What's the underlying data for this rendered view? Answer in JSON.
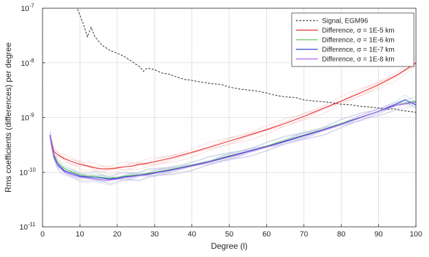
{
  "chart_data": {
    "type": "line",
    "title": "",
    "xlabel": "Degree (l)",
    "ylabel": "Rms coefficients (differences) per degree",
    "xlim": [
      0,
      100
    ],
    "ylim": [
      1e-11,
      1e-07
    ],
    "yscale": "log",
    "grid": true,
    "legend_position": "top-right",
    "x_ticks": [
      "0",
      "10",
      "20",
      "30",
      "40",
      "50",
      "60",
      "70",
      "80",
      "90",
      "100"
    ],
    "y_ticks": [
      {
        "value": 1e-11,
        "mantissa": "10",
        "exponent": "-11"
      },
      {
        "value": 1e-10,
        "mantissa": "10",
        "exponent": "-10"
      },
      {
        "value": 1e-09,
        "mantissa": "10",
        "exponent": "-9"
      },
      {
        "value": 1e-08,
        "mantissa": "10",
        "exponent": "-8"
      },
      {
        "value": 1e-07,
        "mantissa": "10",
        "exponent": "-7"
      }
    ],
    "series": [
      {
        "name": "Signal, EGM96",
        "color": "#404040",
        "dash": "3 2",
        "x": [
          9,
          10,
          11,
          12,
          13,
          14,
          15,
          16,
          18,
          20,
          22,
          24,
          26,
          27,
          28,
          30,
          32,
          34,
          36,
          38,
          40,
          42,
          45,
          48,
          50,
          53,
          55,
          58,
          60,
          63,
          65,
          68,
          70,
          73,
          75,
          78,
          80,
          83,
          85,
          88,
          90,
          92,
          94,
          96,
          98,
          100
        ],
        "y": [
          1.1e-07,
          7.5e-08,
          5e-08,
          3e-08,
          4.5e-08,
          3e-08,
          2.5e-08,
          2.1e-08,
          1.7e-08,
          1.5e-08,
          1.3e-08,
          1.05e-08,
          8.5e-09,
          7e-09,
          8e-09,
          7.5e-09,
          6.5e-09,
          6.2e-09,
          5.5e-09,
          5e-09,
          4.8e-09,
          4.5e-09,
          4.2e-09,
          4e-09,
          3.6e-09,
          3.3e-09,
          3.2e-09,
          3e-09,
          2.8e-09,
          2.5e-09,
          2.4e-09,
          2.3e-09,
          2.1e-09,
          2e-09,
          1.95e-09,
          1.85e-09,
          1.75e-09,
          1.7e-09,
          1.6e-09,
          1.55e-09,
          1.5e-09,
          1.4e-09,
          1.45e-09,
          1.35e-09,
          1.3e-09,
          1.25e-09
        ]
      },
      {
        "name": "Difference, σ = 1E-5 km",
        "color": "#e8272b",
        "band": "#f7b3b3",
        "x": [
          2,
          3,
          4,
          5,
          6,
          8,
          10,
          12,
          14,
          16,
          18,
          20,
          22,
          24,
          26,
          28,
          30,
          35,
          40,
          45,
          50,
          55,
          60,
          65,
          70,
          75,
          80,
          85,
          90,
          95,
          100
        ],
        "y": [
          4.5e-10,
          2.4e-10,
          2.1e-10,
          1.9e-10,
          1.75e-10,
          1.55e-10,
          1.4e-10,
          1.3e-10,
          1.2e-10,
          1.15e-10,
          1.15e-10,
          1.2e-10,
          1.25e-10,
          1.3e-10,
          1.4e-10,
          1.45e-10,
          1.55e-10,
          1.85e-10,
          2.3e-10,
          2.9e-10,
          3.7e-10,
          4.7e-10,
          6e-10,
          7.8e-10,
          1.05e-09,
          1.45e-09,
          2e-09,
          2.8e-09,
          4e-09,
          6e-09,
          1e-08
        ]
      },
      {
        "name": "Difference, σ = 1E-6 km",
        "color": "#59c85a",
        "band": "#b9e6b9",
        "x": [
          2,
          3,
          4,
          5,
          6,
          8,
          10,
          12,
          14,
          16,
          18,
          20,
          22,
          24,
          26,
          28,
          30,
          35,
          40,
          45,
          50,
          55,
          60,
          65,
          70,
          75,
          80,
          85,
          90,
          95,
          100
        ],
        "y": [
          4.3e-10,
          2.1e-10,
          1.5e-10,
          1.3e-10,
          1.15e-10,
          1e-10,
          9e-11,
          8.5e-11,
          8.5e-11,
          8e-11,
          7.8e-11,
          8e-11,
          8.5e-11,
          8.8e-11,
          9e-11,
          9.5e-11,
          1e-10,
          1.15e-10,
          1.35e-10,
          1.6e-10,
          2e-10,
          2.4e-10,
          3e-10,
          3.8e-10,
          4.8e-10,
          6e-10,
          7.8e-10,
          1e-09,
          1.3e-09,
          1.7e-09,
          2e-09
        ]
      },
      {
        "name": "Difference, σ = 1E-7 km",
        "color": "#2f3fd6",
        "band": "#aab2ef",
        "x": [
          2,
          3,
          4,
          5,
          6,
          8,
          10,
          12,
          14,
          16,
          18,
          20,
          22,
          24,
          26,
          28,
          30,
          35,
          40,
          45,
          50,
          55,
          60,
          65,
          70,
          75,
          80,
          85,
          90,
          95,
          97,
          100
        ],
        "y": [
          4.8e-10,
          2e-10,
          1.4e-10,
          1.2e-10,
          1.05e-10,
          9.5e-11,
          8.5e-11,
          8.2e-11,
          8e-11,
          7.8e-11,
          7.5e-11,
          7.8e-11,
          8.2e-11,
          8.5e-11,
          8.8e-11,
          9.2e-11,
          9.7e-11,
          1.12e-10,
          1.32e-10,
          1.58e-10,
          1.95e-10,
          2.4e-10,
          2.95e-10,
          3.7e-10,
          4.7e-10,
          5.9e-10,
          7.6e-10,
          1e-09,
          1.3e-09,
          1.8e-09,
          2.1e-09,
          1.7e-09
        ]
      },
      {
        "name": "Difference, σ = 1E-8 km",
        "color": "#a55cf0",
        "band": "#d9bff7",
        "x": [
          2,
          3,
          4,
          5,
          6,
          8,
          10,
          12,
          14,
          16,
          18,
          20,
          22,
          24,
          26,
          28,
          30,
          35,
          40,
          45,
          50,
          55,
          60,
          65,
          70,
          75,
          80,
          85,
          90,
          95,
          100
        ],
        "y": [
          4.6e-10,
          1.9e-10,
          1.35e-10,
          1.15e-10,
          1e-10,
          9e-11,
          8.2e-11,
          7.8e-11,
          7.5e-11,
          7.2e-11,
          7.2e-11,
          7.5e-11,
          8e-11,
          8.3e-11,
          8.7e-11,
          9e-11,
          9.5e-11,
          1.1e-10,
          1.3e-10,
          1.55e-10,
          1.9e-10,
          2.35e-10,
          2.9e-10,
          3.6e-10,
          4.6e-10,
          5.8e-10,
          7.5e-10,
          9.8e-10,
          1.3e-09,
          1.7e-09,
          1.9e-09
        ]
      }
    ]
  }
}
